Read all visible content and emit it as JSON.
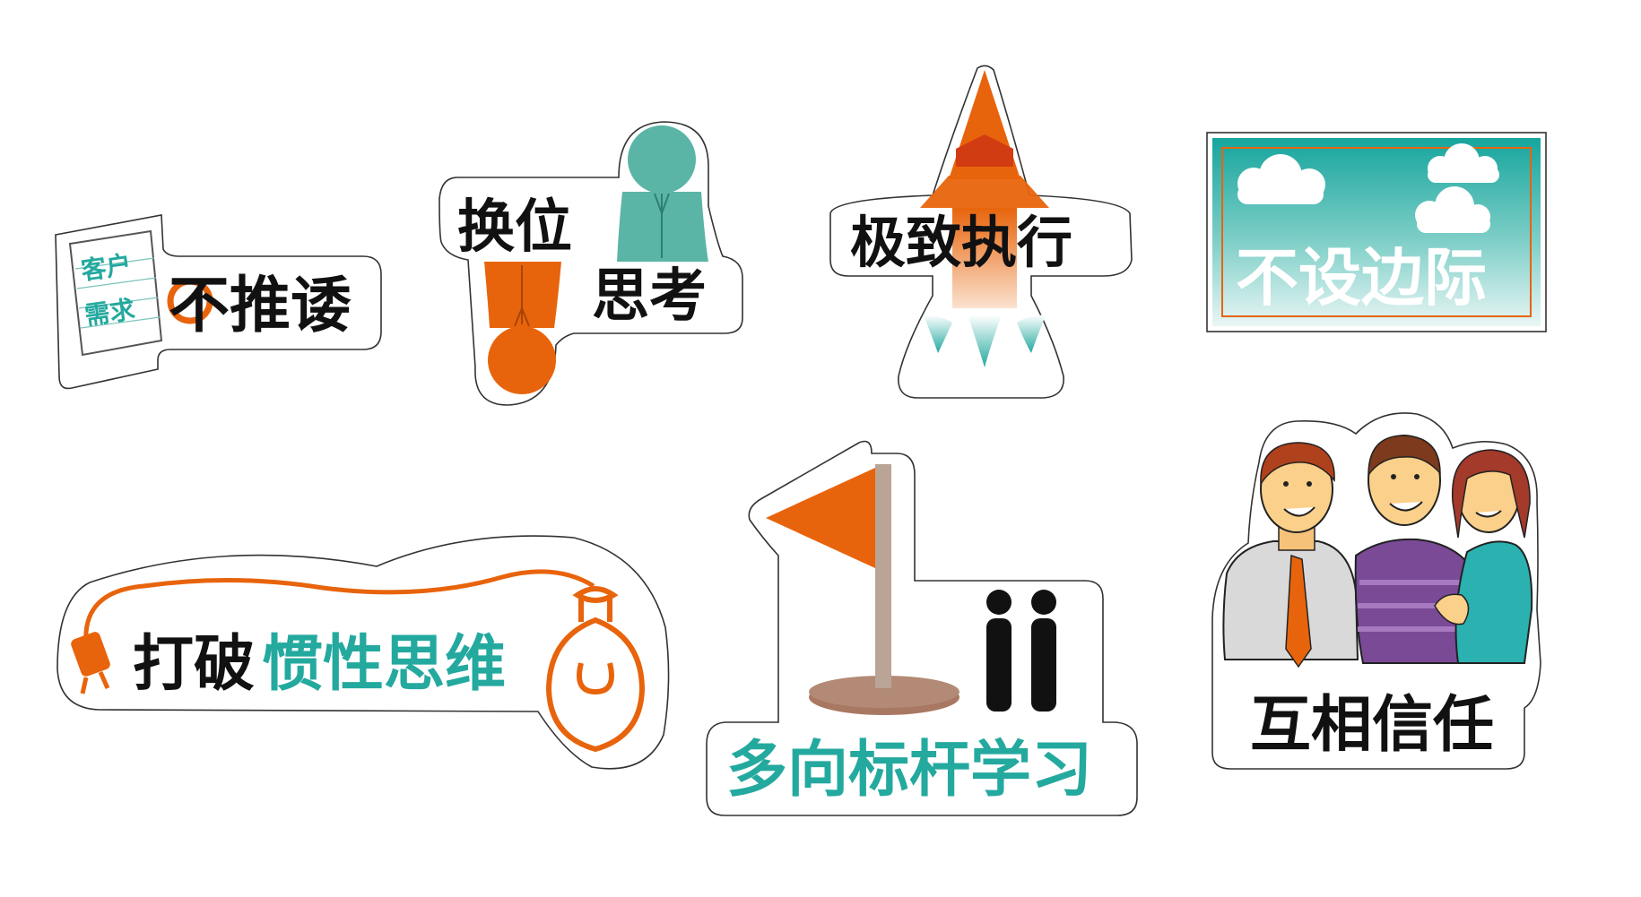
{
  "colors": {
    "orange": "#e8640c",
    "teal": "#24a99f",
    "teal_light": "#5bb5a6",
    "black": "#111111",
    "brown_base": "#a97863",
    "pole": "#b9a496",
    "outline": "#333333"
  },
  "stickers": {
    "no_shirk": {
      "note_line1": "客户",
      "note_line2": "需求",
      "title": "不推诿"
    },
    "empathy": {
      "word1": "换位",
      "word2": "思考"
    },
    "execution": {
      "title": "极致执行"
    },
    "no_limits": {
      "title": "不设边际"
    },
    "break_inertia": {
      "part1": "打破",
      "part2": "惯性思维"
    },
    "benchmark": {
      "title": "多向标杆学习"
    },
    "trust": {
      "title": "互相信任"
    }
  }
}
